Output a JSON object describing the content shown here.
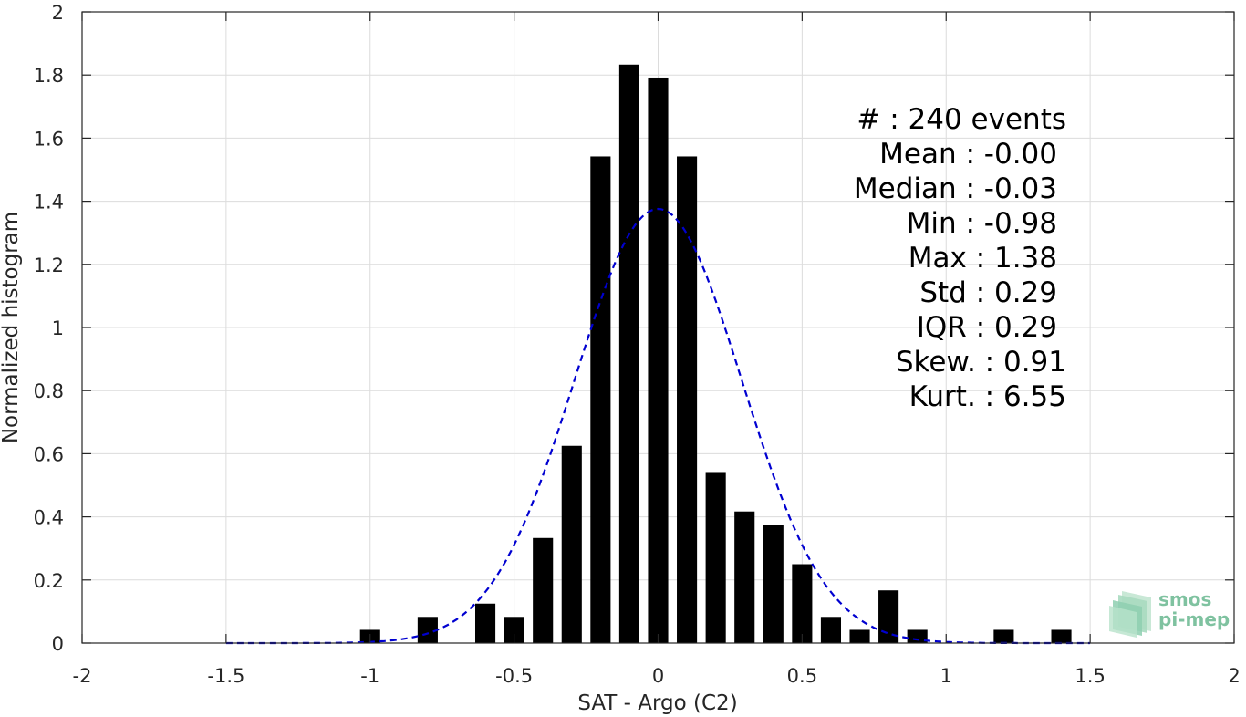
{
  "chart_data": {
    "type": "bar",
    "title": "",
    "xlabel": "SAT - Argo (C2)",
    "ylabel": "Normalized histogram",
    "xlim": [
      -2,
      2
    ],
    "ylim": [
      0,
      2
    ],
    "xticks": [
      -2,
      -1.5,
      -1,
      -0.5,
      0,
      0.5,
      1,
      1.5,
      2
    ],
    "xtick_labels": [
      "-2",
      "-1.5",
      "-1",
      "-0.5",
      "0",
      "0.5",
      "1",
      "1.5",
      "2"
    ],
    "yticks": [
      0,
      0.2,
      0.4,
      0.6,
      0.8,
      1,
      1.2,
      1.4,
      1.6,
      1.8,
      2
    ],
    "ytick_labels": [
      "0",
      "0.2",
      "0.4",
      "0.6",
      "0.8",
      "1",
      "1.2",
      "1.4",
      "1.6",
      "1.8",
      "2"
    ],
    "grid": true,
    "bar_color": "#000000",
    "bar_width": 0.07,
    "bins": [
      {
        "x": -1.0,
        "y": 0.042
      },
      {
        "x": -0.8,
        "y": 0.083
      },
      {
        "x": -0.6,
        "y": 0.125
      },
      {
        "x": -0.5,
        "y": 0.083
      },
      {
        "x": -0.4,
        "y": 0.333
      },
      {
        "x": -0.3,
        "y": 0.625
      },
      {
        "x": -0.2,
        "y": 1.542
      },
      {
        "x": -0.1,
        "y": 1.833
      },
      {
        "x": 0.0,
        "y": 1.792
      },
      {
        "x": 0.1,
        "y": 1.542
      },
      {
        "x": 0.2,
        "y": 0.542
      },
      {
        "x": 0.3,
        "y": 0.417
      },
      {
        "x": 0.4,
        "y": 0.375
      },
      {
        "x": 0.5,
        "y": 0.25
      },
      {
        "x": 0.6,
        "y": 0.083
      },
      {
        "x": 0.7,
        "y": 0.042
      },
      {
        "x": 0.8,
        "y": 0.167
      },
      {
        "x": 0.9,
        "y": 0.042
      },
      {
        "x": 1.2,
        "y": 0.042
      },
      {
        "x": 1.4,
        "y": 0.042
      }
    ],
    "fit_curve": {
      "type": "gaussian",
      "mean": 0.0,
      "std": 0.29,
      "x_range": [
        -1.5,
        1.5
      ],
      "color": "#0000d0",
      "style": "dashed"
    },
    "annotations": [
      {
        "label": "#  ",
        "value": ": 240 events"
      },
      {
        "label": "Mean ",
        "value": ": -0.00"
      },
      {
        "label": "Median ",
        "value": ": -0.03"
      },
      {
        "label": "Min ",
        "value": ": -0.98"
      },
      {
        "label": "Max ",
        "value": ": 1.38"
      },
      {
        "label": "Std ",
        "value": ": 0.29"
      },
      {
        "label": "IQR ",
        "value": ": 0.29"
      },
      {
        "label": "Skew. ",
        "value": ": 0.91"
      },
      {
        "label": "Kurt. ",
        "value": ": 6.55"
      }
    ]
  },
  "logo": {
    "line1": "smos",
    "line2": "pi-mep"
  }
}
